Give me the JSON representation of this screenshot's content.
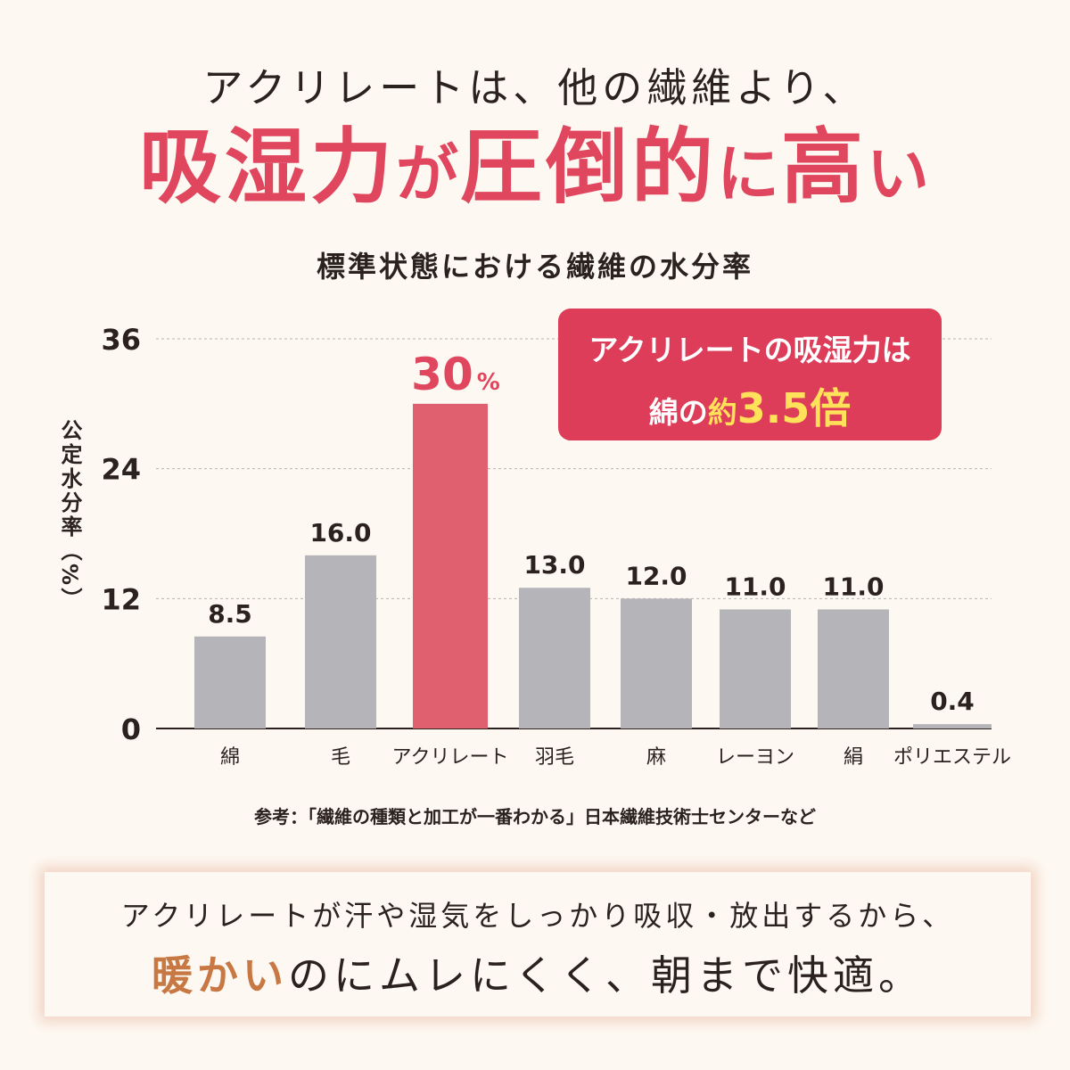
{
  "header": {
    "lead": "アクリレートは、他の繊維より、",
    "headline_parts": [
      "吸湿力",
      "が",
      "圧倒的",
      "に",
      "高",
      "い"
    ]
  },
  "chart_data": {
    "type": "bar",
    "title": "標準状態における繊維の水分率",
    "ylabel": "公定水分率（%）",
    "ylim": [
      0,
      36
    ],
    "yticks": [
      0,
      12,
      24,
      36
    ],
    "grid": true,
    "categories": [
      "綿",
      "毛",
      "アクリレート",
      "羽毛",
      "麻",
      "レーヨン",
      "絹",
      "ポリエステル"
    ],
    "values": [
      8.5,
      16.0,
      30,
      13.0,
      12.0,
      11.0,
      11.0,
      0.4
    ],
    "value_labels": [
      "8.5",
      "16.0",
      "30",
      "13.0",
      "12.0",
      "11.0",
      "11.0",
      "0.4"
    ],
    "highlight_index": 2,
    "highlight_unit": "%",
    "colors": {
      "default": "#b5b4b9",
      "highlight": "#e1606f",
      "highlight_label": "#e0475f",
      "grid": "#b9b2ad",
      "axis": "#2b2220"
    }
  },
  "callout": {
    "line1": "アクリレートの吸湿力は",
    "line2_prefix": "綿の",
    "line2_about": "約",
    "line2_value": "3.5倍"
  },
  "source": "参考：「繊維の種類と加工が一番わかる」日本繊維技術士センターなど",
  "message": {
    "line1": "アクリレートが汗や湿気をしっかり吸収・放出するから、",
    "line2_accent": "暖かい",
    "line2_rest": "のにムレにくく、朝まで快適。"
  }
}
